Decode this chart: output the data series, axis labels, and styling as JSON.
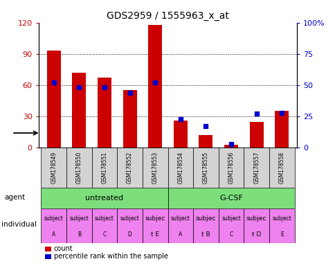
{
  "title": "GDS2959 / 1555963_x_at",
  "samples": [
    "GSM178549",
    "GSM178550",
    "GSM178551",
    "GSM178552",
    "GSM178553",
    "GSM178554",
    "GSM178555",
    "GSM178556",
    "GSM178557",
    "GSM178558"
  ],
  "counts": [
    93,
    72,
    67,
    55,
    118,
    26,
    12,
    3,
    25,
    35
  ],
  "percentile_ranks": [
    52,
    48,
    48,
    44,
    52,
    23,
    17,
    3,
    27,
    28
  ],
  "ylim_left": [
    0,
    120
  ],
  "ylim_right": [
    0,
    100
  ],
  "yticks_left": [
    0,
    30,
    60,
    90,
    120
  ],
  "yticks_right": [
    0,
    25,
    50,
    75,
    100
  ],
  "ytick_labels_left": [
    "0",
    "30",
    "60",
    "90",
    "120"
  ],
  "ytick_labels_right": [
    "0",
    "25",
    "50",
    "75",
    "100%"
  ],
  "agent_labels": [
    "untreated",
    "G-CSF"
  ],
  "agent_starts": [
    0,
    5
  ],
  "agent_ends": [
    5,
    10
  ],
  "agent_color": "#7cdf7c",
  "individual_lines": [
    [
      "subject",
      "subject",
      "subject",
      "subject",
      "subjec",
      "subject",
      "subjec",
      "subject",
      "subjec",
      "subject"
    ],
    [
      "A",
      "B",
      "C",
      "D",
      "t E",
      "A",
      "t B",
      "C",
      "t D",
      "E"
    ]
  ],
  "individual_highlight": [
    4,
    6,
    8
  ],
  "individual_highlight_color": "#ee82ee",
  "individual_normal_color": "#ee82ee",
  "sample_box_color": "#d3d3d3",
  "bar_color": "#cc0000",
  "percentile_color": "#0000cc",
  "bar_width": 0.55,
  "tick_color_left": "#cc0000",
  "tick_color_right": "#0000cc",
  "legend_items": [
    {
      "color": "#cc0000",
      "label": "count"
    },
    {
      "color": "#0000cc",
      "label": "percentile rank within the sample"
    }
  ]
}
